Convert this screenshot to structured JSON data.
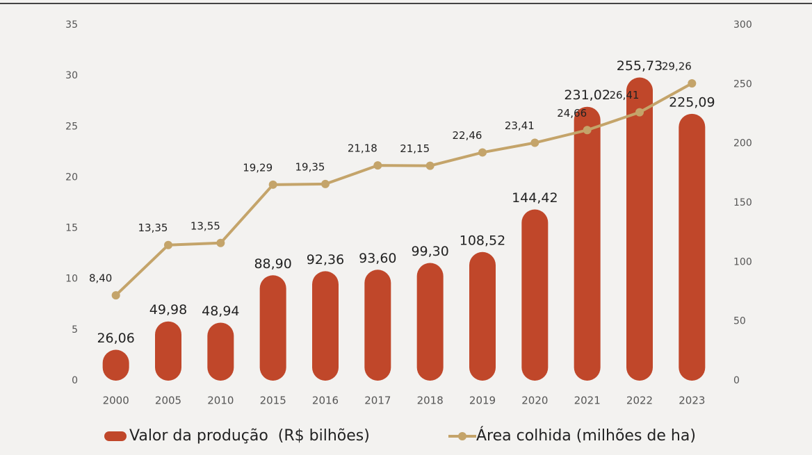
{
  "chart_data": {
    "type": "bar_line",
    "categories": [
      "2000",
      "2005",
      "2010",
      "2015",
      "2016",
      "2017",
      "2018",
      "2019",
      "2020",
      "2021",
      "2022",
      "2023"
    ],
    "series": [
      {
        "name": "Valor da produção  (R$ bilhões)",
        "type": "bar",
        "axis": "y2",
        "color": "#c0472a",
        "values": [
          26.06,
          49.98,
          48.94,
          88.9,
          92.36,
          93.6,
          99.3,
          108.52,
          144.42,
          231.02,
          255.73,
          225.09
        ],
        "value_labels": [
          "26,06",
          "49,98",
          "48,94",
          "88,90",
          "92,36",
          "93,60",
          "99,30",
          "108,52",
          "144,42",
          "231,02",
          "255,73",
          "225,09"
        ]
      },
      {
        "name": "Área colhida (milhões de ha)",
        "type": "line",
        "axis": "y",
        "color": "#c4a46a",
        "values": [
          8.4,
          13.35,
          13.55,
          19.29,
          19.35,
          21.18,
          21.15,
          22.46,
          23.41,
          24.66,
          26.41,
          29.26
        ],
        "value_labels": [
          "8,40",
          "13,35",
          "13,55",
          "19,29",
          "19,35",
          "21,18",
          "21,15",
          "22,46",
          "23,41",
          "24,66",
          "26,41",
          "29,26"
        ]
      }
    ],
    "ylim": [
      0,
      35
    ],
    "yticks": [
      0,
      5,
      10,
      15,
      20,
      25,
      30,
      35
    ],
    "y2lim": [
      0,
      300
    ],
    "y2ticks": [
      0,
      50,
      100,
      150,
      200,
      250,
      300
    ],
    "legend": "bottom"
  }
}
